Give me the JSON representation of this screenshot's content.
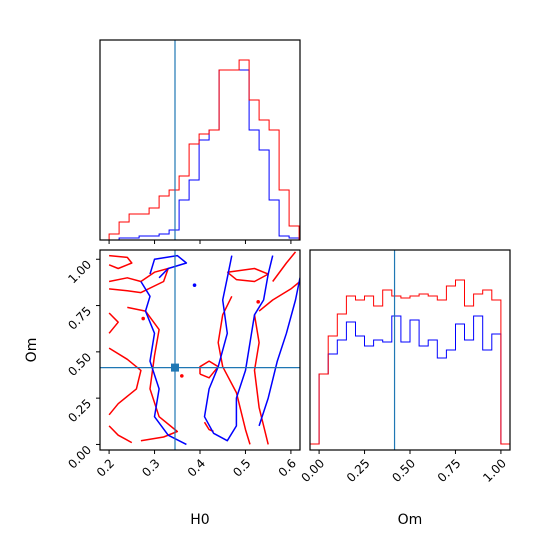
{
  "chart_data": [
    {
      "type": "histogram",
      "panel": "H0-marginal",
      "xlim": [
        0.18,
        0.62
      ],
      "truth_x": 0.345,
      "series": [
        {
          "color": "#0000ff",
          "edges": [
            0.2,
            0.222,
            0.244,
            0.266,
            0.288,
            0.31,
            0.332,
            0.354,
            0.376,
            0.398,
            0.42,
            0.442,
            0.464,
            0.486,
            0.508,
            0.53,
            0.552,
            0.574,
            0.596,
            0.618
          ],
          "values": [
            0.0,
            0.01,
            0.01,
            0.02,
            0.02,
            0.03,
            0.05,
            0.2,
            0.3,
            0.5,
            0.55,
            0.85,
            0.85,
            0.85,
            0.55,
            0.45,
            0.2,
            0.02,
            0.01
          ]
        },
        {
          "color": "#ff0000",
          "edges": [
            0.2,
            0.222,
            0.244,
            0.266,
            0.288,
            0.31,
            0.332,
            0.354,
            0.376,
            0.398,
            0.42,
            0.442,
            0.464,
            0.486,
            0.508,
            0.53,
            0.552,
            0.574,
            0.596,
            0.618
          ],
          "values": [
            0.03,
            0.09,
            0.13,
            0.13,
            0.16,
            0.22,
            0.25,
            0.32,
            0.48,
            0.53,
            0.55,
            0.85,
            0.85,
            0.9,
            0.7,
            0.6,
            0.55,
            0.25,
            0.07
          ]
        }
      ]
    },
    {
      "type": "contour",
      "panel": "H0-Om-joint",
      "xlabel": "H0",
      "ylabel": "Om",
      "xlim": [
        0.18,
        0.62
      ],
      "ylim": [
        -0.03,
        1.05
      ],
      "xticks": [
        0.2,
        0.3,
        0.4,
        0.5,
        0.6
      ],
      "xtick_labels": [
        "0.2",
        "0.3",
        "0.4",
        "0.5",
        "0.6"
      ],
      "yticks": [
        0.0,
        0.25,
        0.5,
        0.75,
        1.0
      ],
      "ytick_labels": [
        "0.00",
        "0.25",
        "0.50",
        "0.75",
        "1.00"
      ],
      "truth": [
        0.345,
        0.415
      ],
      "series": [
        {
          "color": "#ff0000",
          "contours": [
            [
              [
                0.2,
                1.02
              ],
              [
                0.24,
                1.01
              ],
              [
                0.25,
                0.98
              ],
              [
                0.22,
                0.95
              ],
              [
                0.2,
                0.97
              ]
            ],
            [
              [
                0.2,
                0.88
              ],
              [
                0.24,
                0.9
              ],
              [
                0.27,
                0.88
              ],
              [
                0.3,
                0.93
              ],
              [
                0.33,
                0.95
              ],
              [
                0.32,
                0.88
              ],
              [
                0.27,
                0.82
              ],
              [
                0.24,
                0.83
              ],
              [
                0.2,
                0.84
              ]
            ],
            [
              [
                0.2,
                0.71
              ],
              [
                0.22,
                0.66
              ],
              [
                0.2,
                0.6
              ]
            ],
            [
              [
                0.24,
                0.74
              ],
              [
                0.28,
                0.72
              ],
              [
                0.31,
                0.62
              ],
              [
                0.3,
                0.48
              ],
              [
                0.29,
                0.3
              ],
              [
                0.31,
                0.15
              ],
              [
                0.35,
                0.07
              ],
              [
                0.32,
                0.04
              ],
              [
                0.27,
                0.02
              ]
            ],
            [
              [
                0.2,
                0.52
              ],
              [
                0.24,
                0.46
              ],
              [
                0.27,
                0.4
              ],
              [
                0.26,
                0.3
              ],
              [
                0.22,
                0.22
              ],
              [
                0.2,
                0.16
              ]
            ],
            [
              [
                0.2,
                0.1
              ],
              [
                0.22,
                0.05
              ],
              [
                0.25,
                0.01
              ]
            ],
            [
              [
                0.41,
                0.12
              ],
              [
                0.42,
                0.08
              ],
              [
                0.43,
                0.07
              ]
            ],
            [
              [
                0.4,
                0.38
              ],
              [
                0.42,
                0.36
              ],
              [
                0.44,
                0.42
              ],
              [
                0.42,
                0.45
              ],
              [
                0.4,
                0.42
              ],
              [
                0.4,
                0.38
              ]
            ],
            [
              [
                0.46,
                0.93
              ],
              [
                0.52,
                0.95
              ],
              [
                0.55,
                0.92
              ],
              [
                0.52,
                0.88
              ],
              [
                0.48,
                0.89
              ],
              [
                0.46,
                0.93
              ]
            ],
            [
              [
                0.47,
                0.8
              ],
              [
                0.45,
                0.7
              ],
              [
                0.44,
                0.55
              ],
              [
                0.45,
                0.42
              ],
              [
                0.48,
                0.28
              ],
              [
                0.5,
                0.08
              ],
              [
                0.51,
                0.0
              ]
            ],
            [
              [
                0.56,
                0.88
              ],
              [
                0.59,
                0.98
              ],
              [
                0.61,
                1.04
              ]
            ],
            [
              [
                0.53,
                0.72
              ],
              [
                0.56,
                0.78
              ],
              [
                0.6,
                0.84
              ],
              [
                0.62,
                0.88
              ]
            ],
            [
              [
                0.52,
                0.7
              ],
              [
                0.53,
                0.55
              ],
              [
                0.52,
                0.4
              ],
              [
                0.53,
                0.2
              ],
              [
                0.55,
                0.0
              ]
            ]
          ],
          "dots": [
            [
              0.275,
              0.68
            ],
            [
              0.528,
              0.77
            ],
            [
              0.36,
              0.37
            ]
          ]
        },
        {
          "color": "#0000ff",
          "contours": [
            [
              [
                0.29,
                0.92
              ],
              [
                0.3,
                1.0
              ],
              [
                0.35,
                1.02
              ],
              [
                0.37,
                0.98
              ],
              [
                0.33,
                0.95
              ],
              [
                0.31,
                0.9
              ]
            ],
            [
              [
                0.27,
                0.88
              ],
              [
                0.29,
                0.8
              ],
              [
                0.28,
                0.72
              ],
              [
                0.3,
                0.6
              ],
              [
                0.29,
                0.45
              ],
              [
                0.31,
                0.3
              ],
              [
                0.3,
                0.15
              ],
              [
                0.33,
                0.05
              ],
              [
                0.37,
                0.0
              ]
            ],
            [
              [
                0.47,
                1.02
              ],
              [
                0.46,
                0.9
              ],
              [
                0.45,
                0.78
              ],
              [
                0.46,
                0.6
              ],
              [
                0.44,
                0.42
              ],
              [
                0.42,
                0.3
              ],
              [
                0.41,
                0.15
              ],
              [
                0.43,
                0.06
              ],
              [
                0.46,
                0.02
              ],
              [
                0.48,
                0.1
              ],
              [
                0.48,
                0.25
              ],
              [
                0.5,
                0.4
              ],
              [
                0.51,
                0.55
              ],
              [
                0.52,
                0.7
              ],
              [
                0.54,
                0.78
              ],
              [
                0.55,
                0.92
              ],
              [
                0.56,
                1.02
              ]
            ],
            [
              [
                0.53,
                0.1
              ],
              [
                0.55,
                0.25
              ],
              [
                0.57,
                0.45
              ],
              [
                0.59,
                0.6
              ],
              [
                0.61,
                0.78
              ],
              [
                0.62,
                0.9
              ]
            ]
          ],
          "dots": [
            [
              0.388,
              0.86
            ]
          ]
        }
      ]
    },
    {
      "type": "histogram",
      "panel": "Om-marginal",
      "xlabel": "Om",
      "xlim": [
        -0.05,
        1.05
      ],
      "xticks": [
        0.0,
        0.25,
        0.5,
        0.75,
        1.0
      ],
      "xtick_labels": [
        "0.00",
        "0.25",
        "0.50",
        "0.75",
        "1.00"
      ],
      "truth_x": 0.415,
      "series": [
        {
          "color": "#0000ff",
          "edges": [
            -0.05,
            0.0,
            0.05,
            0.1,
            0.15,
            0.2,
            0.25,
            0.3,
            0.35,
            0.4,
            0.45,
            0.5,
            0.55,
            0.6,
            0.65,
            0.7,
            0.75,
            0.8,
            0.85,
            0.9,
            0.95,
            1.0,
            1.05
          ],
          "values": [
            0.03,
            0.38,
            0.48,
            0.55,
            0.64,
            0.57,
            0.52,
            0.55,
            0.54,
            0.67,
            0.54,
            0.65,
            0.52,
            0.55,
            0.46,
            0.5,
            0.63,
            0.55,
            0.67,
            0.5,
            0.58,
            0.03
          ]
        },
        {
          "color": "#ff0000",
          "edges": [
            -0.05,
            0.0,
            0.05,
            0.1,
            0.15,
            0.2,
            0.25,
            0.3,
            0.35,
            0.4,
            0.45,
            0.5,
            0.55,
            0.6,
            0.65,
            0.7,
            0.75,
            0.8,
            0.85,
            0.9,
            0.95,
            1.0,
            1.05
          ],
          "values": [
            0.03,
            0.38,
            0.57,
            0.68,
            0.77,
            0.75,
            0.77,
            0.72,
            0.8,
            0.77,
            0.76,
            0.77,
            0.78,
            0.77,
            0.75,
            0.82,
            0.85,
            0.72,
            0.78,
            0.8,
            0.75,
            0.03
          ]
        }
      ]
    }
  ]
}
